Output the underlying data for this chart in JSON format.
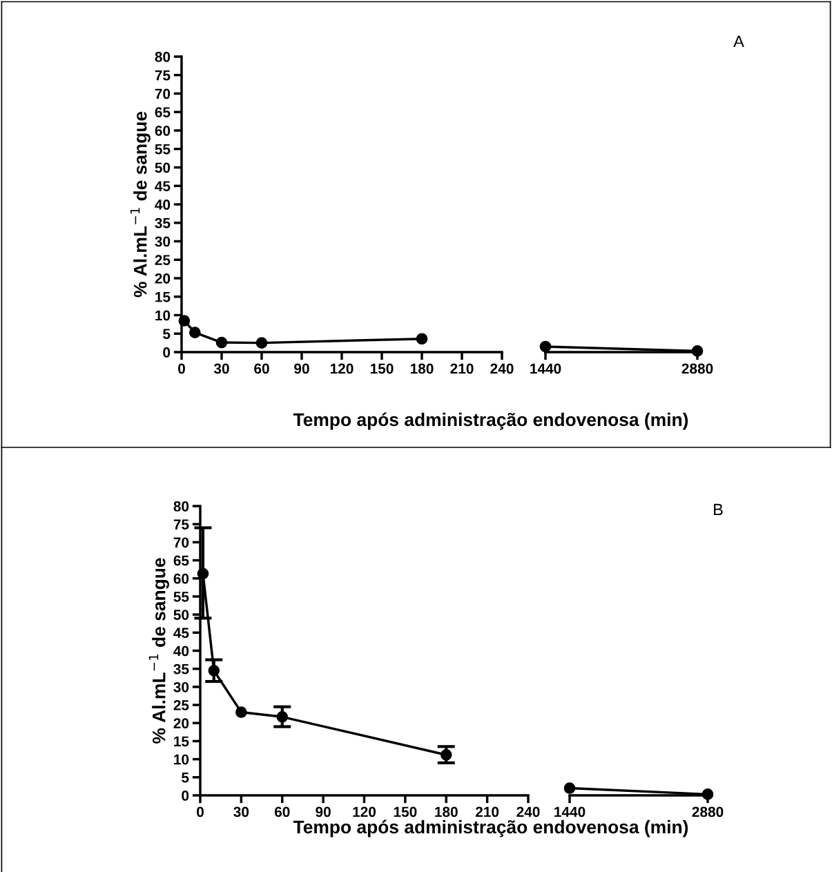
{
  "chart_data": [
    {
      "type": "line",
      "annotations": [
        "A"
      ],
      "xlabel": "Tempo após administração endovenosa (min)",
      "ylabel": "% Al.mL$^{−1}$ de sangue",
      "x": [
        2,
        10,
        30,
        60,
        180
      ],
      "marker": "circle",
      "line_style": "solid",
      "xlim": [
        0,
        240
      ],
      "xticks": [
        0,
        30,
        60,
        90,
        120,
        150,
        180,
        210,
        240
      ],
      "ylim": [
        0,
        80
      ],
      "yticks": [
        0,
        5,
        10,
        15,
        20,
        25,
        30,
        35,
        40,
        45,
        50,
        55,
        60,
        65,
        70,
        75,
        80
      ],
      "series": [
        {
          "color": "#000000",
          "values": [
            8.5,
            5.3,
            2.6,
            2.5,
            3.6
          ]
        }
      ]
    },
    {
      "type": "line",
      "x": [
        1440,
        2880
      ],
      "marker": "circle",
      "line_style": "solid",
      "xlim": [
        1440,
        2880
      ],
      "xticks": [
        1440,
        2880
      ],
      "ylim": [
        0,
        80
      ],
      "tick_labels": "x",
      "series": [
        {
          "color": "#000000",
          "values": [
            1.5,
            0.3
          ]
        }
      ]
    },
    {
      "type": "line",
      "annotations": [
        "B"
      ],
      "xlabel": "Tempo após administração endovenosa (min)",
      "ylabel": "% Al.mL$^{−1}$ de sangue",
      "x": [
        2,
        10,
        30,
        60,
        180
      ],
      "marker": "circle",
      "line_style": "solid",
      "xlim": [
        0,
        240
      ],
      "xticks": [
        0,
        30,
        60,
        90,
        120,
        150,
        180,
        210,
        240
      ],
      "ylim": [
        0,
        80
      ],
      "yticks": [
        0,
        5,
        10,
        15,
        20,
        25,
        30,
        35,
        40,
        45,
        50,
        55,
        60,
        65,
        70,
        75,
        80
      ],
      "series": [
        {
          "color": "#000000",
          "values": [
            61.3,
            34.5,
            23,
            21.7,
            11.2
          ],
          "errors": [
            [
              49,
              74
            ],
            [
              31.5,
              37.5
            ],
            null,
            [
              19,
              24.5
            ],
            [
              9,
              13.5
            ]
          ]
        }
      ]
    },
    {
      "type": "line",
      "x": [
        1440,
        2880
      ],
      "marker": "circle",
      "line_style": "solid",
      "xlim": [
        1440,
        2880
      ],
      "xticks": [
        1440,
        2880
      ],
      "ylim": [
        0,
        80
      ],
      "tick_labels": "x",
      "series": [
        {
          "color": "#000000",
          "values": [
            2,
            0.3
          ]
        }
      ]
    }
  ]
}
